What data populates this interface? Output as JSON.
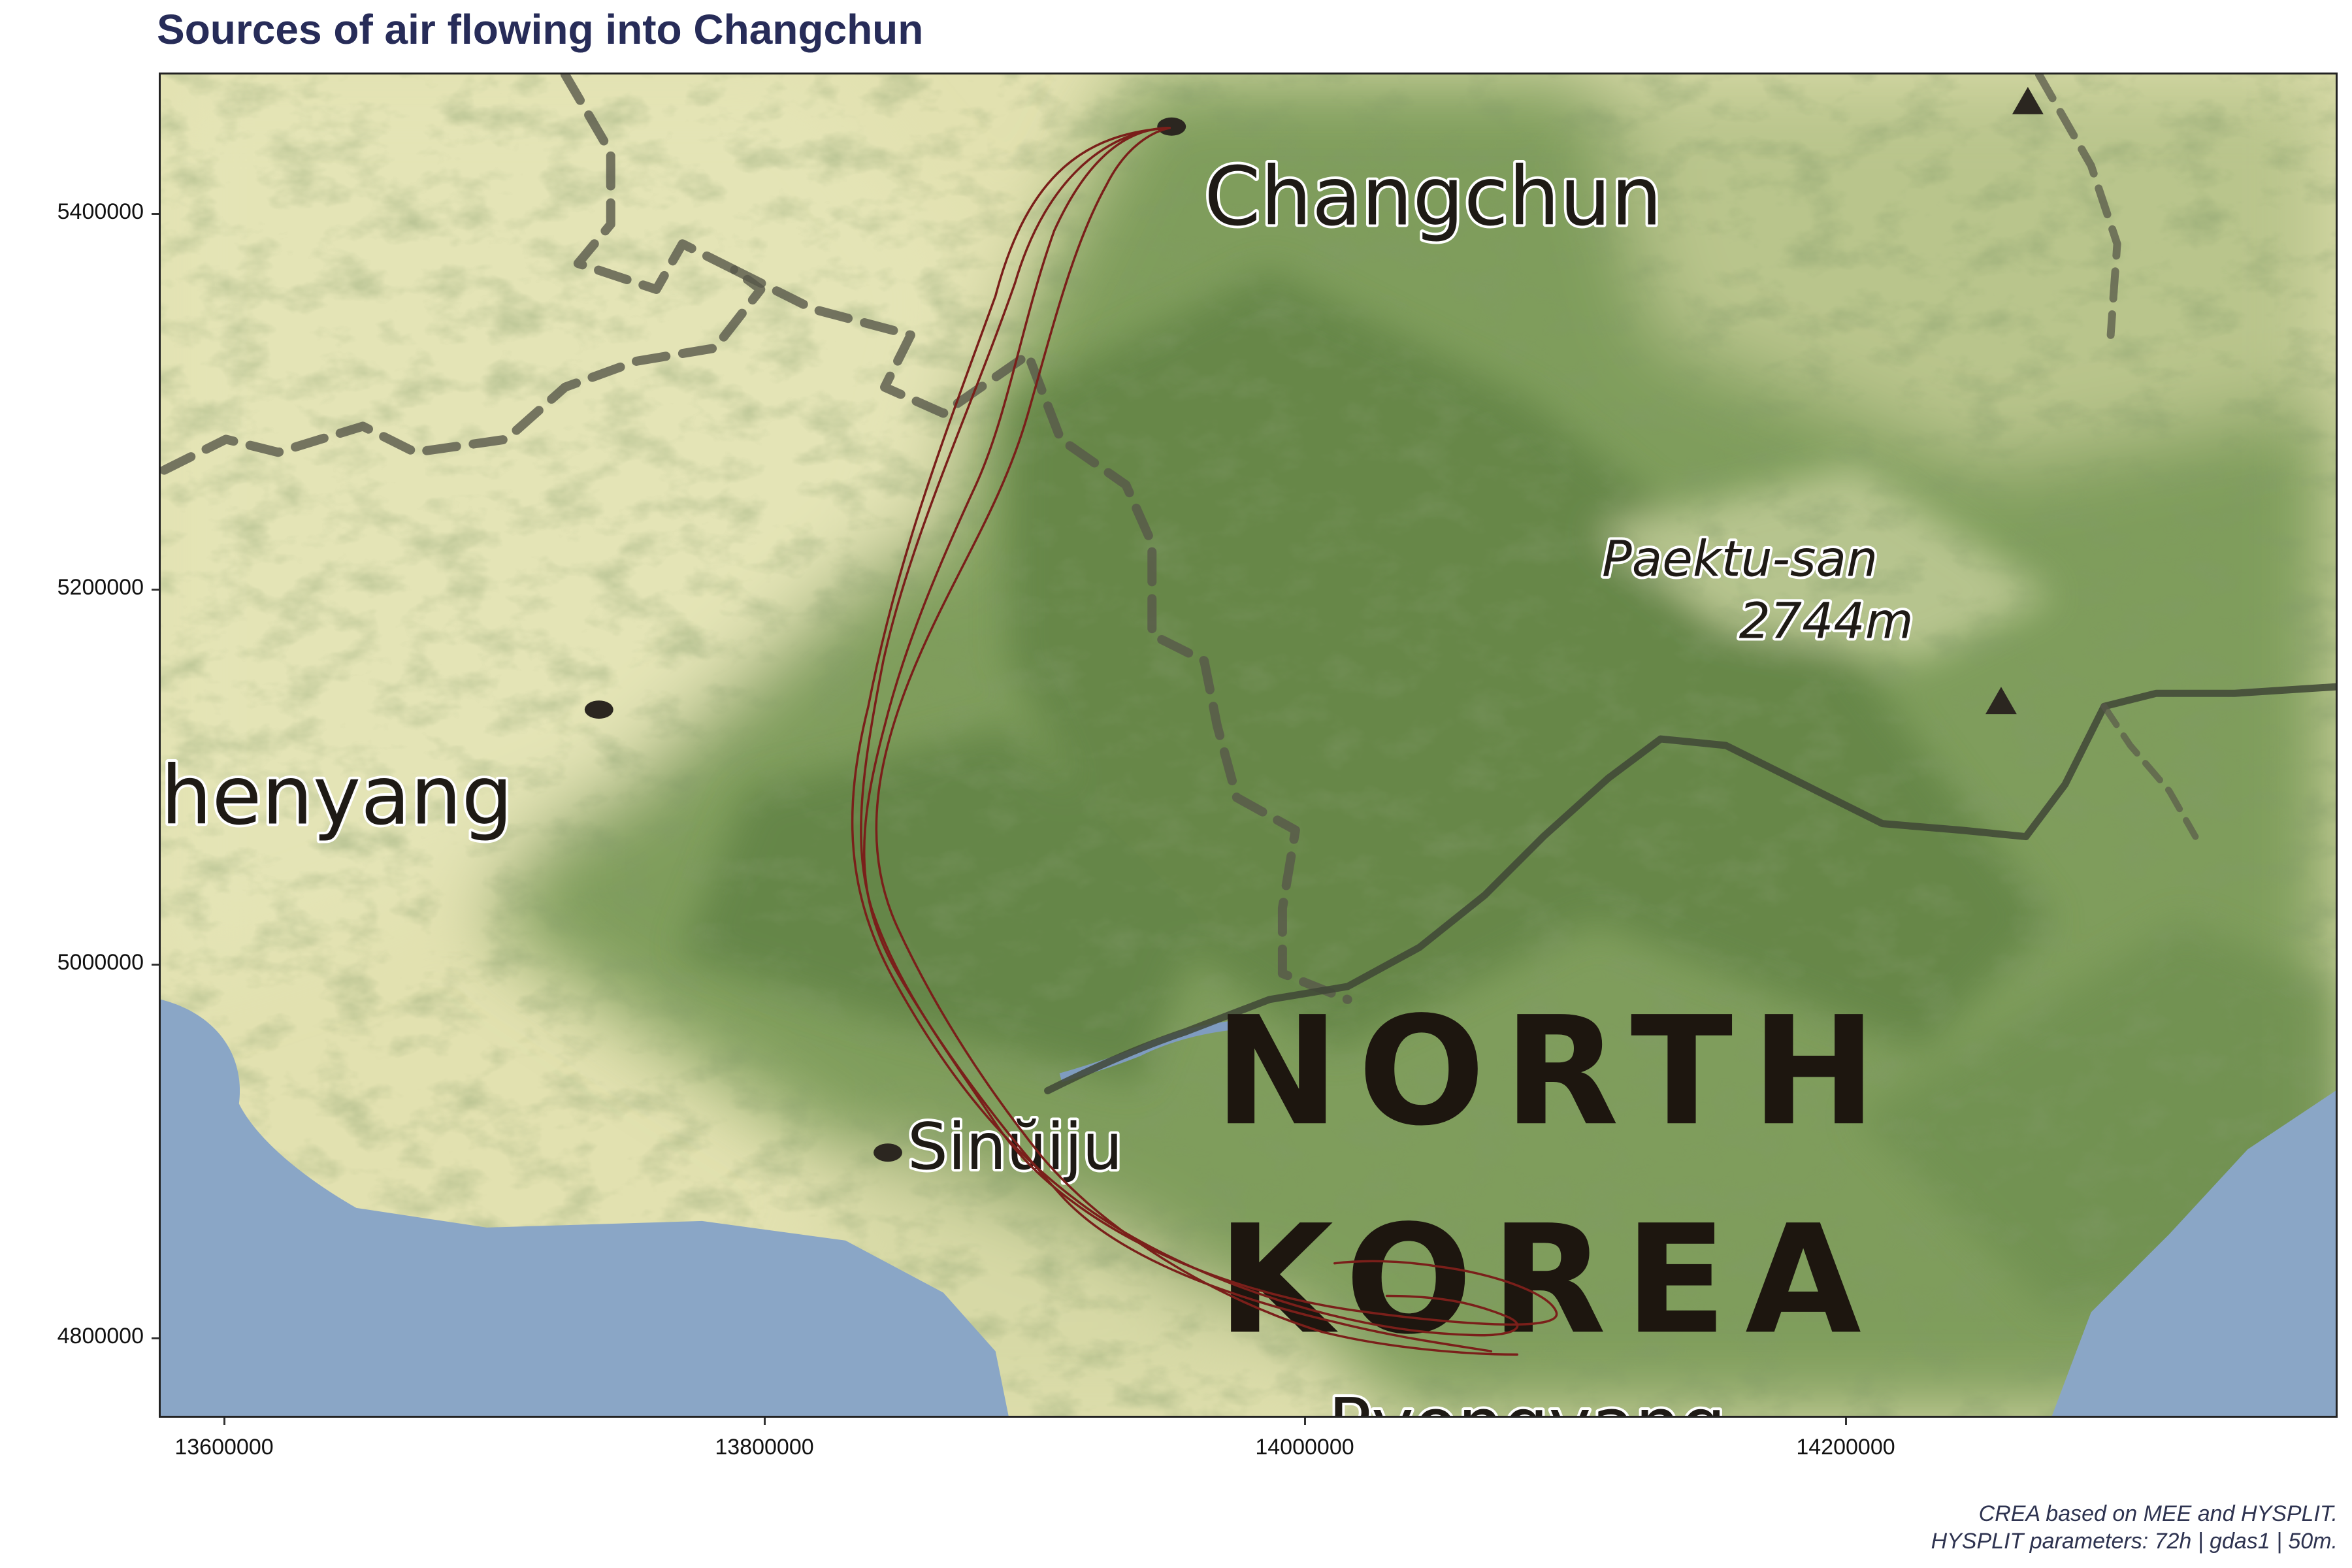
{
  "title": "Sources of air flowing into Changchun",
  "map": {
    "axes": {
      "x_ticks": [
        "13600000",
        "13800000",
        "14000000",
        "14200000"
      ],
      "y_ticks": [
        "5400000",
        "5200000",
        "5000000",
        "4800000"
      ]
    },
    "labels": {
      "city_changchun": "Changchun",
      "city_shenyang": "henyang",
      "city_sinuiju": "Sinŭiju",
      "mountain_name": "Paektu-san",
      "mountain_elevation": "2744m",
      "country_line1": "NORTH",
      "country_line2": "KOREA",
      "city_pyongyang_partial": "Pyongyang"
    },
    "colors": {
      "trajectory": "#7a1f1a",
      "water": "#8aa6c6",
      "lowland": "#e4e3b4",
      "forest": "#6f8f4f",
      "border": "#5a5a48"
    },
    "trajectory_count": 4
  },
  "caption": {
    "line1": "CREA based on MEE and HYSPLIT.",
    "line2": "HYSPLIT parameters: 72h | gdas1 | 50m."
  }
}
